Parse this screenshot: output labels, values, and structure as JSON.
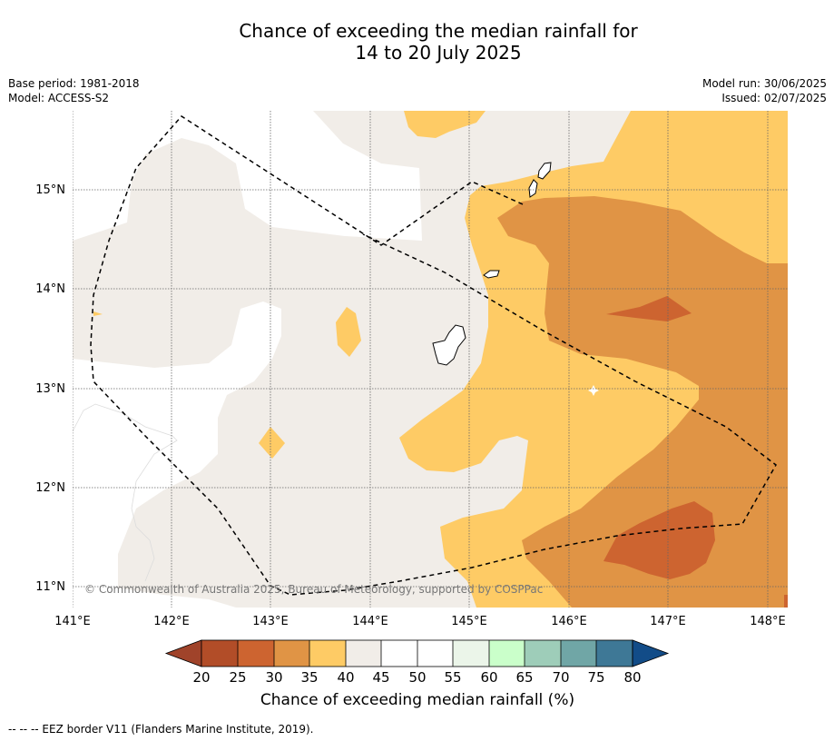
{
  "title_line1": "Chance of exceeding the median rainfall for",
  "title_line2": "14 to 20 July 2025",
  "meta_left": {
    "base_period": "Base period: 1981-2018",
    "model": "Model: ACCESS-S2"
  },
  "meta_right": {
    "model_run": "Model run: 30/06/2025",
    "issued": "Issued: 02/07/2025"
  },
  "map": {
    "copyright": "© Commonwealth of Australia 2025, Bureau of Meteorology, supported by COSPPac",
    "lon_labels": [
      "141°E",
      "142°E",
      "143°E",
      "144°E",
      "145°E",
      "146°E",
      "147°E",
      "148°E"
    ],
    "lat_labels": [
      "15°N",
      "14°N",
      "13°N",
      "12°N",
      "11°N"
    ],
    "lon_range": [
      141,
      148.2
    ],
    "lat_range": [
      10.8,
      15.8
    ],
    "grid": true,
    "border_color": "#000000"
  },
  "colorbar": {
    "title": "Chance of exceeding median rainfall (%)",
    "ticks": [
      "20",
      "25",
      "30",
      "35",
      "40",
      "45",
      "50",
      "55",
      "60",
      "65",
      "70",
      "75",
      "80"
    ],
    "colors": {
      "below_20": "#a0432a",
      "c20_25": "#b24d28",
      "c25_30": "#cd6430",
      "c30_35": "#e09445",
      "c35_40": "#fecb65",
      "c40_45": "#f1ede8",
      "c45_50": "#ffffff",
      "c50_55": "#ffffff",
      "c55_60": "#ebf5e9",
      "c60_65": "#caffca",
      "c65_70": "#9ecdb9",
      "c70_75": "#70a6a6",
      "c75_80": "#3e7896",
      "above_80": "#124c88"
    }
  },
  "footer": "--  --  -- EEZ border V11 (Flanders Marine Institute, 2019)."
}
